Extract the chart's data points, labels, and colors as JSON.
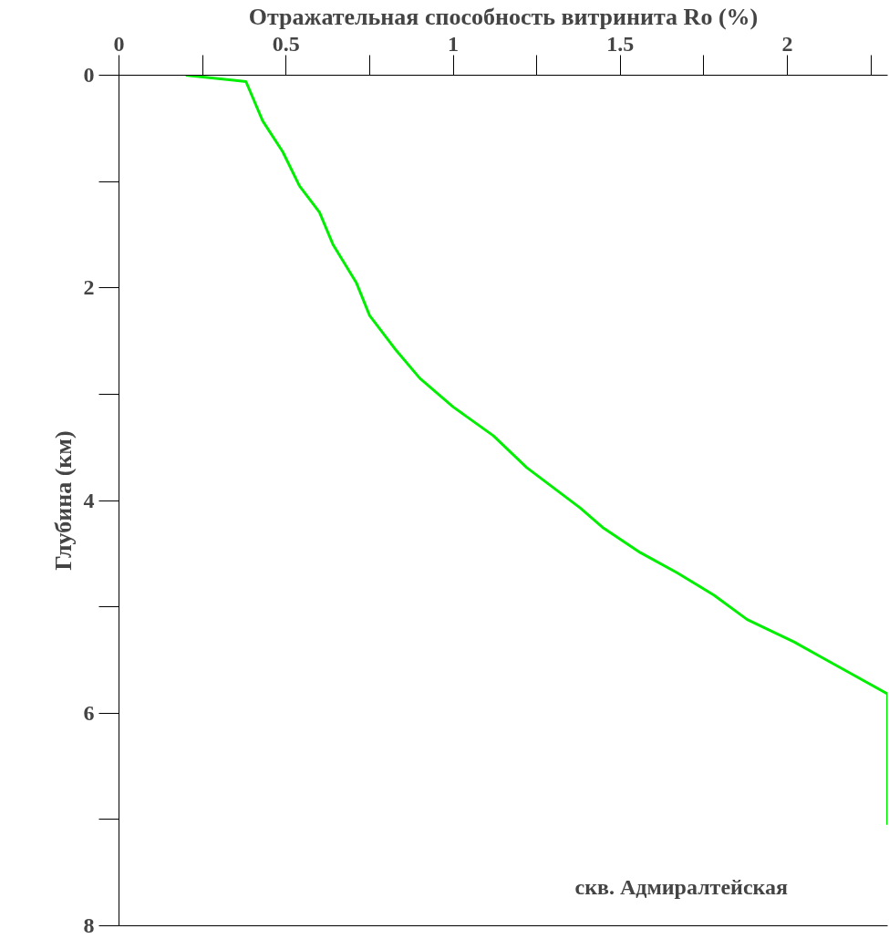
{
  "chart_data": {
    "type": "line",
    "xlabel": "Отражательная способность витринита Ro (%)",
    "ylabel": "Глубина (км)",
    "annotations": [
      "скв. Адмиралтейская"
    ],
    "xlim": [
      0,
      2.3
    ],
    "ylim": [
      8,
      0
    ],
    "xticks": [
      0,
      0.5,
      1,
      1.5,
      2
    ],
    "yticks": [
      0,
      2,
      4,
      6,
      8
    ],
    "grid": false,
    "line_style": "solid",
    "series": [
      {
        "color": "#00ee00",
        "x": [
          0.2,
          0.38,
          0.43,
          0.49,
          0.54,
          0.6,
          0.64,
          0.71,
          0.75,
          0.83,
          0.9,
          1.0,
          1.12,
          1.22,
          1.38,
          1.45,
          1.56,
          1.67,
          1.78,
          1.88,
          2.02,
          2.1,
          2.18,
          2.3,
          2.3
        ],
        "values": [
          0,
          0.06,
          0.43,
          0.72,
          1.04,
          1.29,
          1.59,
          1.95,
          2.26,
          2.59,
          2.85,
          3.12,
          3.39,
          3.69,
          4.07,
          4.26,
          4.49,
          4.68,
          4.89,
          5.12,
          5.33,
          5.47,
          5.61,
          5.82,
          7.05
        ]
      }
    ]
  }
}
